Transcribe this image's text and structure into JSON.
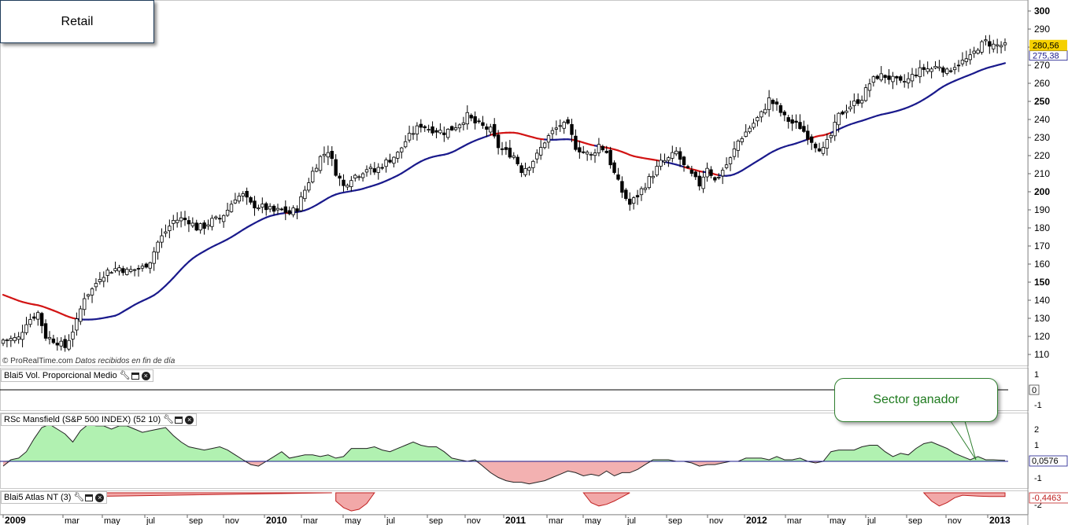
{
  "title_box": "Retail",
  "callout": "Sector ganador",
  "credit": {
    "site": "© ProRealTime.com",
    "note": "Datos recibidos en fin de día"
  },
  "panels": {
    "volume": {
      "label": "Blai5 Vol. Proporcional Medio",
      "value_label": "0",
      "ticks": [
        "1",
        "-1"
      ]
    },
    "mansfield": {
      "label": "RSc Mansfield (S&P 500 INDEX) (52 10)",
      "value_label": "0,0576",
      "ticks": [
        "2",
        "1",
        "-1"
      ]
    },
    "atlas": {
      "label": "Blai5 Atlas NT (3)",
      "value_label": "-0,4463",
      "ticks": [
        "1",
        "-2"
      ]
    }
  },
  "price_labels": {
    "last": "280,56",
    "ma": "275,38"
  },
  "colors": {
    "ma_above": "#1a1a8c",
    "ma_below": "#d21414",
    "rs_positive": "#a8f0a8",
    "rs_negative": "#f2a8a8",
    "callout_text": "#1e7a1e",
    "last_price_bg": "#f5d000"
  },
  "chart_data": {
    "type": "candlestick",
    "frequency": "weekly",
    "ylim": [
      105,
      305
    ],
    "y_ticks": [
      110,
      120,
      130,
      140,
      150,
      160,
      170,
      180,
      190,
      200,
      210,
      220,
      230,
      240,
      250,
      260,
      270,
      280,
      290,
      300
    ],
    "x_ticks": [
      "2009",
      "mar",
      "may",
      "jul",
      "sep",
      "nov",
      "2010",
      "mar",
      "may",
      "jul",
      "sep",
      "nov",
      "2011",
      "mar",
      "may",
      "jul",
      "sep",
      "nov",
      "2012",
      "mar",
      "may",
      "jul",
      "sep",
      "nov",
      "2013"
    ],
    "close_anchors": [
      [
        0,
        118
      ],
      [
        4,
        119
      ],
      [
        6,
        128
      ],
      [
        9,
        133
      ],
      [
        11,
        120
      ],
      [
        14,
        117
      ],
      [
        16,
        114
      ],
      [
        19,
        128
      ],
      [
        21,
        142
      ],
      [
        23,
        146
      ],
      [
        25,
        153
      ],
      [
        27,
        156
      ],
      [
        30,
        158
      ],
      [
        32,
        156
      ],
      [
        36,
        158
      ],
      [
        38,
        162
      ],
      [
        40,
        172
      ],
      [
        42,
        178
      ],
      [
        44,
        184
      ],
      [
        46,
        185
      ],
      [
        48,
        184
      ],
      [
        50,
        180
      ],
      [
        52,
        181
      ],
      [
        54,
        184
      ],
      [
        56,
        185
      ],
      [
        58,
        190
      ],
      [
        60,
        197
      ],
      [
        62,
        198
      ],
      [
        64,
        193
      ],
      [
        66,
        192
      ],
      [
        68,
        191
      ],
      [
        70,
        189
      ],
      [
        72,
        190
      ],
      [
        74,
        188
      ],
      [
        76,
        191
      ],
      [
        78,
        201
      ],
      [
        80,
        211
      ],
      [
        82,
        219
      ],
      [
        84,
        223
      ],
      [
        86,
        211
      ],
      [
        88,
        203
      ],
      [
        90,
        208
      ],
      [
        92,
        210
      ],
      [
        94,
        213
      ],
      [
        96,
        211
      ],
      [
        98,
        215
      ],
      [
        100,
        218
      ],
      [
        102,
        221
      ],
      [
        104,
        228
      ],
      [
        106,
        233
      ],
      [
        108,
        237
      ],
      [
        110,
        235
      ],
      [
        112,
        234
      ],
      [
        114,
        233
      ],
      [
        116,
        235
      ],
      [
        118,
        238
      ],
      [
        120,
        242
      ],
      [
        122,
        238
      ],
      [
        124,
        236
      ],
      [
        126,
        234
      ],
      [
        128,
        225
      ],
      [
        130,
        222
      ],
      [
        132,
        220
      ],
      [
        134,
        212
      ],
      [
        136,
        215
      ],
      [
        138,
        220
      ],
      [
        140,
        228
      ],
      [
        142,
        233
      ],
      [
        144,
        237
      ],
      [
        146,
        236
      ],
      [
        148,
        225
      ],
      [
        150,
        222
      ],
      [
        152,
        220
      ],
      [
        154,
        226
      ],
      [
        156,
        222
      ],
      [
        158,
        210
      ],
      [
        160,
        200
      ],
      [
        162,
        193
      ],
      [
        164,
        198
      ],
      [
        166,
        204
      ],
      [
        168,
        210
      ],
      [
        170,
        216
      ],
      [
        172,
        218
      ],
      [
        174,
        222
      ],
      [
        176,
        214
      ],
      [
        178,
        209
      ],
      [
        180,
        204
      ],
      [
        182,
        214
      ],
      [
        184,
        206
      ],
      [
        186,
        212
      ],
      [
        188,
        218
      ],
      [
        190,
        228
      ],
      [
        192,
        233
      ],
      [
        194,
        238
      ],
      [
        196,
        243
      ],
      [
        198,
        251
      ],
      [
        200,
        247
      ],
      [
        202,
        241
      ],
      [
        204,
        238
      ],
      [
        206,
        236
      ],
      [
        208,
        231
      ],
      [
        210,
        226
      ],
      [
        212,
        223
      ],
      [
        214,
        231
      ],
      [
        216,
        242
      ],
      [
        218,
        246
      ],
      [
        220,
        249
      ],
      [
        222,
        252
      ],
      [
        224,
        260
      ],
      [
        226,
        264
      ],
      [
        228,
        264
      ],
      [
        230,
        262
      ],
      [
        232,
        260
      ],
      [
        234,
        262
      ],
      [
        236,
        266
      ],
      [
        238,
        268
      ],
      [
        240,
        268
      ],
      [
        242,
        270
      ],
      [
        244,
        266
      ],
      [
        246,
        270
      ],
      [
        248,
        272
      ],
      [
        250,
        274
      ],
      [
        252,
        280
      ],
      [
        254,
        283
      ],
      [
        256,
        281
      ],
      [
        258,
        281
      ],
      [
        259,
        280.56
      ]
    ],
    "moving_average": {
      "last": 275.38,
      "start": 143
    },
    "rsc_mansfield": [
      [
        0,
        -0.3
      ],
      [
        2,
        0.1
      ],
      [
        4,
        0.2
      ],
      [
        6,
        0.6
      ],
      [
        8,
        1.4
      ],
      [
        10,
        2.1
      ],
      [
        12,
        2.3
      ],
      [
        14,
        2.0
      ],
      [
        16,
        1.7
      ],
      [
        18,
        1.2
      ],
      [
        20,
        1.9
      ],
      [
        22,
        2.3
      ],
      [
        24,
        2.2
      ],
      [
        26,
        2.2
      ],
      [
        28,
        2.0
      ],
      [
        30,
        2.2
      ],
      [
        32,
        2.2
      ],
      [
        34,
        2.0
      ],
      [
        36,
        1.8
      ],
      [
        38,
        1.9
      ],
      [
        40,
        2.0
      ],
      [
        42,
        2.1
      ],
      [
        44,
        1.6
      ],
      [
        46,
        1.2
      ],
      [
        48,
        0.9
      ],
      [
        50,
        0.8
      ],
      [
        52,
        0.7
      ],
      [
        54,
        0.8
      ],
      [
        56,
        0.9
      ],
      [
        58,
        0.7
      ],
      [
        60,
        0.4
      ],
      [
        62,
        0.1
      ],
      [
        64,
        -0.2
      ],
      [
        66,
        -0.3
      ],
      [
        68,
        0.0
      ],
      [
        70,
        0.3
      ],
      [
        72,
        0.6
      ],
      [
        74,
        0.2
      ],
      [
        76,
        0.3
      ],
      [
        78,
        0.4
      ],
      [
        80,
        0.4
      ],
      [
        82,
        0.3
      ],
      [
        84,
        0.4
      ],
      [
        86,
        0.2
      ],
      [
        88,
        0.3
      ],
      [
        90,
        0.8
      ],
      [
        92,
        0.8
      ],
      [
        94,
        0.8
      ],
      [
        96,
        0.9
      ],
      [
        98,
        0.7
      ],
      [
        100,
        0.6
      ],
      [
        102,
        0.8
      ],
      [
        104,
        1.0
      ],
      [
        106,
        1.2
      ],
      [
        108,
        1.0
      ],
      [
        110,
        0.9
      ],
      [
        112,
        0.9
      ],
      [
        114,
        0.6
      ],
      [
        116,
        0.2
      ],
      [
        118,
        0.1
      ],
      [
        120,
        0.0
      ],
      [
        122,
        0.1
      ],
      [
        124,
        -0.3
      ],
      [
        126,
        -0.7
      ],
      [
        128,
        -1.0
      ],
      [
        130,
        -1.2
      ],
      [
        132,
        -1.3
      ],
      [
        134,
        -1.3
      ],
      [
        136,
        -1.4
      ],
      [
        138,
        -1.3
      ],
      [
        140,
        -1.2
      ],
      [
        142,
        -1.0
      ],
      [
        144,
        -0.8
      ],
      [
        146,
        -0.6
      ],
      [
        148,
        -0.7
      ],
      [
        150,
        -0.9
      ],
      [
        152,
        -0.8
      ],
      [
        154,
        -0.9
      ],
      [
        156,
        -0.6
      ],
      [
        158,
        -0.9
      ],
      [
        160,
        -0.7
      ],
      [
        162,
        -0.7
      ],
      [
        164,
        -0.5
      ],
      [
        166,
        -0.2
      ],
      [
        168,
        0.1
      ],
      [
        170,
        0.1
      ],
      [
        172,
        0.1
      ],
      [
        174,
        0.0
      ],
      [
        176,
        0.0
      ],
      [
        178,
        -0.1
      ],
      [
        180,
        -0.3
      ],
      [
        182,
        -0.2
      ],
      [
        184,
        -0.2
      ],
      [
        186,
        -0.1
      ],
      [
        188,
        0.0
      ],
      [
        190,
        0.0
      ],
      [
        192,
        0.2
      ],
      [
        194,
        0.2
      ],
      [
        196,
        0.2
      ],
      [
        198,
        0.1
      ],
      [
        200,
        0.3
      ],
      [
        202,
        0.1
      ],
      [
        204,
        0.1
      ],
      [
        206,
        0.2
      ],
      [
        208,
        0.0
      ],
      [
        210,
        -0.1
      ],
      [
        212,
        0.0
      ],
      [
        214,
        0.6
      ],
      [
        216,
        0.7
      ],
      [
        218,
        0.7
      ],
      [
        220,
        0.7
      ],
      [
        222,
        0.9
      ],
      [
        224,
        1.0
      ],
      [
        226,
        1.0
      ],
      [
        228,
        0.6
      ],
      [
        230,
        0.3
      ],
      [
        232,
        0.5
      ],
      [
        234,
        0.4
      ],
      [
        236,
        0.8
      ],
      [
        238,
        1.1
      ],
      [
        240,
        1.2
      ],
      [
        242,
        1.0
      ],
      [
        244,
        0.8
      ],
      [
        246,
        0.5
      ],
      [
        248,
        0.3
      ],
      [
        250,
        0.1
      ],
      [
        252,
        0.3
      ],
      [
        254,
        0.1
      ],
      [
        256,
        0.1
      ],
      [
        259,
        0.0576
      ]
    ],
    "atlas_nt_negative_windows": [
      [
        0,
        -0.6
      ],
      [
        85,
        0
      ],
      [
        86,
        -1.0
      ],
      [
        88,
        -1.8
      ],
      [
        90,
        -2.2
      ],
      [
        92,
        -2.0
      ],
      [
        94,
        -1.3
      ],
      [
        96,
        0
      ],
      [
        150,
        0
      ],
      [
        152,
        -1.2
      ],
      [
        154,
        -1.6
      ],
      [
        156,
        -1.4
      ],
      [
        158,
        -1.0
      ],
      [
        160,
        -0.5
      ],
      [
        162,
        0
      ],
      [
        238,
        0
      ],
      [
        240,
        -1.0
      ],
      [
        242,
        -1.6
      ],
      [
        244,
        -1.2
      ],
      [
        246,
        -0.6
      ],
      [
        248,
        -0.3
      ],
      [
        252,
        -0.4
      ],
      [
        255,
        -0.45
      ],
      [
        259,
        -0.4463
      ]
    ]
  }
}
